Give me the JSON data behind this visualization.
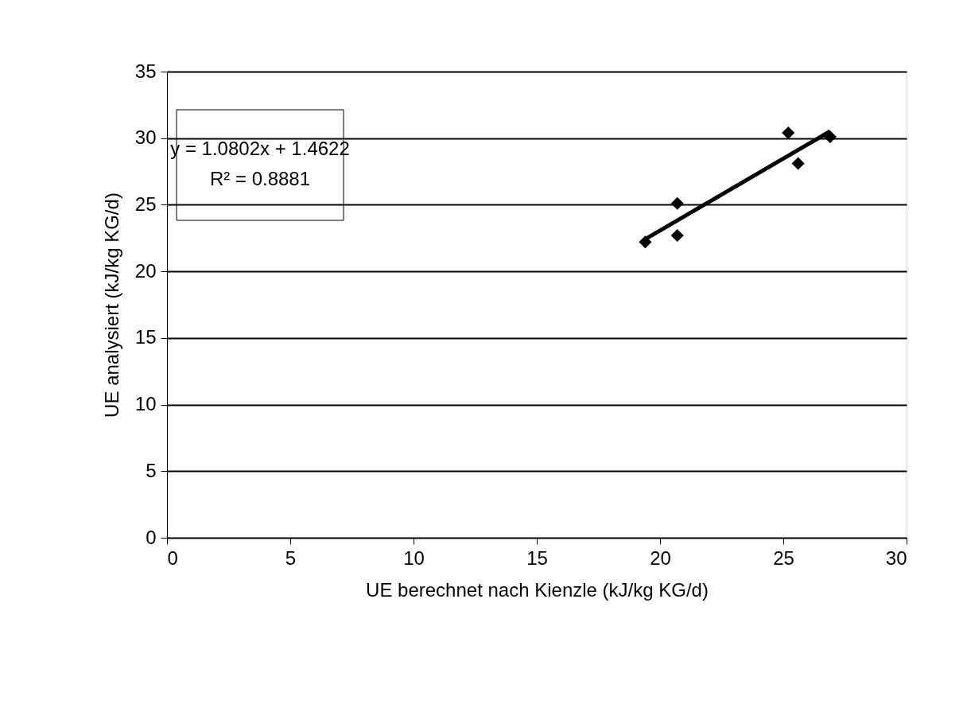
{
  "chart_data": {
    "type": "scatter",
    "xlabel": "UE berechnet nach Kienzle (kJ/kg KG/d)",
    "ylabel": "UE analysiert (kJ/kg KG/d)",
    "annotations": [
      "y = 1.0802x + 1.4622",
      "R² = 0.8881"
    ],
    "series": [
      {
        "color": "#000000",
        "marker": "diamond",
        "x": [
          19.4,
          20.7,
          20.7,
          25.2,
          25.6,
          26.9
        ],
        "values": [
          22.2,
          25.1,
          22.7,
          30.4,
          28.1,
          30.1
        ]
      },
      {
        "type": "line",
        "color": "#000000",
        "line_style": "solid",
        "x": [
          19.4,
          26.9
        ],
        "values": [
          22.42,
          30.52
        ]
      }
    ],
    "xlim": [
      0,
      30
    ],
    "xticks": [
      0,
      5,
      10,
      15,
      20,
      25,
      30
    ],
    "ylim": [
      0,
      35
    ],
    "yticks": [
      0,
      5,
      10,
      15,
      20,
      25,
      30,
      35
    ],
    "grid": "y",
    "legend": false
  }
}
